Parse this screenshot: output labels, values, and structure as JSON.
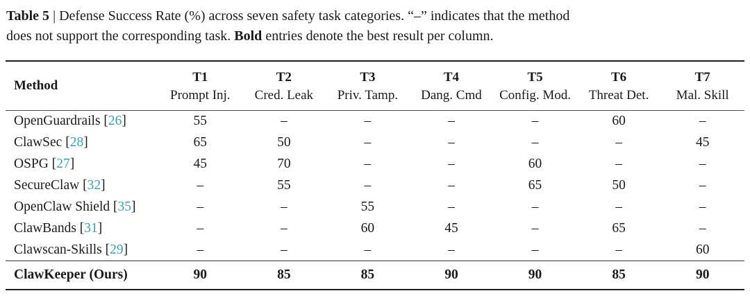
{
  "caption": {
    "title": "Table 5",
    "line1_rest": " | Defense Success Rate (%) across seven safety task categories. “–” indicates that the method",
    "line2_pre": "does not support the corresponding task. ",
    "line2_bold": "Bold",
    "line2_post": " entries denote the best result per column."
  },
  "table": {
    "method_header": "Method",
    "columns": [
      {
        "code": "T1",
        "label": "Prompt Inj."
      },
      {
        "code": "T2",
        "label": "Cred. Leak"
      },
      {
        "code": "T3",
        "label": "Priv. Tamp."
      },
      {
        "code": "T4",
        "label": "Dang. Cmd"
      },
      {
        "code": "T5",
        "label": "Config. Mod."
      },
      {
        "code": "T6",
        "label": "Threat Det."
      },
      {
        "code": "T7",
        "label": "Mal. Skill"
      }
    ],
    "rows": [
      {
        "method": "OpenGuardrails",
        "citation": "26",
        "values": [
          "55",
          "–",
          "–",
          "–",
          "–",
          "60",
          "–"
        ],
        "bold": false
      },
      {
        "method": "ClawSec",
        "citation": "28",
        "values": [
          "65",
          "50",
          "–",
          "–",
          "–",
          "–",
          "45"
        ],
        "bold": false
      },
      {
        "method": "OSPG",
        "citation": "27",
        "values": [
          "45",
          "70",
          "–",
          "–",
          "60",
          "–",
          "–"
        ],
        "bold": false
      },
      {
        "method": "SecureClaw",
        "citation": "32",
        "values": [
          "–",
          "55",
          "–",
          "–",
          "65",
          "50",
          "–"
        ],
        "bold": false
      },
      {
        "method": "OpenClaw Shield",
        "citation": "35",
        "values": [
          "–",
          "–",
          "55",
          "–",
          "–",
          "–",
          "–"
        ],
        "bold": false
      },
      {
        "method": "ClawBands",
        "citation": "31",
        "values": [
          "–",
          "–",
          "60",
          "45",
          "–",
          "65",
          "–"
        ],
        "bold": false
      },
      {
        "method": "Clawscan-Skills",
        "citation": "29",
        "values": [
          "–",
          "–",
          "–",
          "–",
          "–",
          "–",
          "60"
        ],
        "bold": false
      },
      {
        "method": "ClawKeeper (Ours)",
        "citation": null,
        "values": [
          "90",
          "85",
          "85",
          "90",
          "90",
          "85",
          "90"
        ],
        "bold": true
      }
    ]
  },
  "colors": {
    "citation_teal": "#3a9fad",
    "text": "#1a1a1a"
  }
}
